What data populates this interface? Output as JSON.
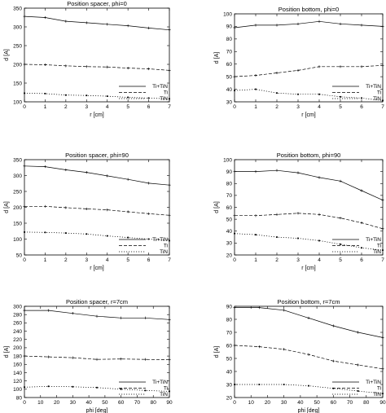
{
  "chart_data": [
    {
      "type": "line",
      "title": "Position spacer, phi=0",
      "xlabel": "r [cm]",
      "ylabel": "d [A]",
      "xlim": [
        0,
        7
      ],
      "ylim": [
        100,
        350
      ],
      "xticks": [
        0,
        1,
        2,
        3,
        4,
        5,
        6,
        7
      ],
      "yticks": [
        100,
        150,
        200,
        250,
        300,
        350
      ],
      "legend": "bottom-right",
      "series": [
        {
          "name": "Ti+TiN",
          "style": "solid",
          "x": [
            0,
            1,
            2,
            3,
            4,
            5,
            6,
            7
          ],
          "y": [
            328,
            325,
            315,
            311,
            307,
            303,
            297,
            292
          ]
        },
        {
          "name": "Ti",
          "style": "dashed",
          "x": [
            0,
            1,
            2,
            3,
            4,
            5,
            6,
            7
          ],
          "y": [
            200,
            199,
            196,
            194,
            193,
            190,
            188,
            184
          ]
        },
        {
          "name": "TiN",
          "style": "dotted",
          "x": [
            0,
            1,
            2,
            3,
            4,
            5,
            6,
            7
          ],
          "y": [
            123,
            122,
            118,
            117,
            115,
            112,
            110,
            108
          ]
        }
      ]
    },
    {
      "type": "line",
      "title": "Position bottom, phi=0",
      "xlabel": "r [cm]",
      "ylabel": "d [A]",
      "xlim": [
        0,
        7
      ],
      "ylim": [
        30,
        100
      ],
      "xticks": [
        0,
        1,
        2,
        3,
        4,
        5,
        6,
        7
      ],
      "yticks": [
        30,
        40,
        50,
        60,
        70,
        80,
        90,
        100
      ],
      "legend": "bottom-right",
      "series": [
        {
          "name": "Ti+TiN",
          "style": "solid",
          "x": [
            0,
            1,
            2,
            3,
            4,
            5,
            6,
            7
          ],
          "y": [
            89,
            91,
            91,
            92,
            94,
            92,
            91,
            90
          ]
        },
        {
          "name": "Ti",
          "style": "dashed",
          "x": [
            0,
            1,
            2,
            3,
            4,
            5,
            6,
            7
          ],
          "y": [
            50,
            51,
            53,
            55,
            58,
            58,
            58,
            59
          ]
        },
        {
          "name": "TiN",
          "style": "dotted",
          "x": [
            0,
            1,
            2,
            3,
            4,
            5,
            6,
            7
          ],
          "y": [
            39,
            40,
            37,
            36,
            36,
            34,
            33,
            31
          ]
        }
      ]
    },
    {
      "type": "line",
      "title": "Position spacer, phi=90",
      "xlabel": "r [cm]",
      "ylabel": "d [A]",
      "xlim": [
        0,
        7
      ],
      "ylim": [
        50,
        350
      ],
      "xticks": [
        0,
        1,
        2,
        3,
        4,
        5,
        6,
        7
      ],
      "yticks": [
        50,
        100,
        150,
        200,
        250,
        300,
        350
      ],
      "legend": "bottom-right",
      "series": [
        {
          "name": "Ti+TiN",
          "style": "solid",
          "x": [
            0,
            1,
            2,
            3,
            4,
            5,
            6,
            7
          ],
          "y": [
            330,
            328,
            318,
            310,
            299,
            288,
            276,
            270
          ]
        },
        {
          "name": "Ti",
          "style": "dashed",
          "x": [
            0,
            1,
            2,
            3,
            4,
            5,
            6,
            7
          ],
          "y": [
            203,
            203,
            199,
            195,
            192,
            186,
            180,
            175
          ]
        },
        {
          "name": "TiN",
          "style": "dotted",
          "x": [
            0,
            1,
            2,
            3,
            4,
            5,
            6,
            7
          ],
          "y": [
            122,
            121,
            119,
            116,
            110,
            105,
            100,
            95
          ]
        }
      ]
    },
    {
      "type": "line",
      "title": "Position bottom, phi=90",
      "xlabel": "r [cm]",
      "ylabel": "d [A]",
      "xlim": [
        0,
        7
      ],
      "ylim": [
        20,
        100
      ],
      "xticks": [
        0,
        1,
        2,
        3,
        4,
        5,
        6,
        7
      ],
      "yticks": [
        20,
        30,
        40,
        50,
        60,
        70,
        80,
        90,
        100
      ],
      "legend": "bottom-right",
      "series": [
        {
          "name": "Ti+TiN",
          "style": "solid",
          "x": [
            0,
            1,
            2,
            3,
            4,
            5,
            6,
            7
          ],
          "y": [
            90,
            90,
            91,
            89,
            85,
            82,
            74,
            66
          ]
        },
        {
          "name": "Ti",
          "style": "dashed",
          "x": [
            0,
            1,
            2,
            3,
            4,
            5,
            6,
            7
          ],
          "y": [
            53,
            53,
            54,
            55,
            54,
            51,
            47,
            42
          ]
        },
        {
          "name": "TiN",
          "style": "dotted",
          "x": [
            0,
            1,
            2,
            3,
            4,
            5,
            6,
            7
          ],
          "y": [
            38,
            37,
            35,
            34,
            32,
            29,
            26,
            24
          ]
        }
      ]
    },
    {
      "type": "line",
      "title": "Position spacer, r=7cm",
      "xlabel": "phi [deg]",
      "ylabel": "d [A]",
      "xlim": [
        0,
        90
      ],
      "ylim": [
        80,
        300
      ],
      "xticks": [
        0,
        10,
        20,
        30,
        40,
        50,
        60,
        70,
        80,
        90
      ],
      "yticks": [
        80,
        100,
        120,
        140,
        160,
        180,
        200,
        220,
        240,
        260,
        280,
        300
      ],
      "legend": "bottom-right",
      "series": [
        {
          "name": "Ti+TiN",
          "style": "solid",
          "x": [
            0,
            15,
            30,
            45,
            60,
            75,
            90
          ],
          "y": [
            290,
            290,
            283,
            276,
            272,
            272,
            268
          ]
        },
        {
          "name": "Ti",
          "style": "dashed",
          "x": [
            0,
            15,
            30,
            45,
            60,
            75,
            90
          ],
          "y": [
            180,
            178,
            176,
            172,
            173,
            172,
            171
          ]
        },
        {
          "name": "TiN",
          "style": "dotted",
          "x": [
            0,
            15,
            30,
            45,
            60,
            75,
            90
          ],
          "y": [
            105,
            107,
            106,
            104,
            100,
            97,
            95
          ]
        }
      ]
    },
    {
      "type": "line",
      "title": "Position bottom, r=7cm",
      "xlabel": "phi [deg]",
      "ylabel": "d [A]",
      "xlim": [
        0,
        90
      ],
      "ylim": [
        20,
        90
      ],
      "xticks": [
        0,
        10,
        20,
        30,
        40,
        50,
        60,
        70,
        80,
        90
      ],
      "yticks": [
        20,
        30,
        40,
        50,
        60,
        70,
        80,
        90
      ],
      "legend": "bottom-right",
      "series": [
        {
          "name": "Ti+TiN",
          "style": "solid",
          "x": [
            0,
            15,
            30,
            45,
            60,
            75,
            90
          ],
          "y": [
            89,
            89,
            87,
            81,
            75,
            70,
            66
          ]
        },
        {
          "name": "Ti",
          "style": "dashed",
          "x": [
            0,
            15,
            30,
            45,
            60,
            75,
            90
          ],
          "y": [
            60,
            59,
            57,
            53,
            48,
            45,
            42
          ]
        },
        {
          "name": "TiN",
          "style": "dotted",
          "x": [
            0,
            15,
            30,
            45,
            60,
            75,
            90
          ],
          "y": [
            30,
            30,
            30,
            29,
            27,
            25,
            23
          ]
        }
      ]
    }
  ]
}
